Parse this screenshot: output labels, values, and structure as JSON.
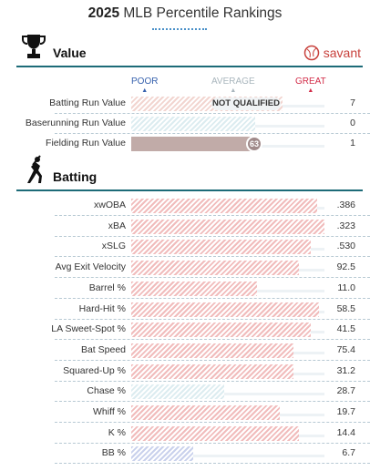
{
  "header": {
    "year": "2025",
    "title": "MLB Percentile Rankings"
  },
  "value_section": {
    "title": "Value",
    "brand": "savant"
  },
  "scale": {
    "poor": "POOR",
    "average": "AVERAGE",
    "great": "GREAT"
  },
  "value_rows": [
    {
      "label": "Batting Run Value",
      "value": "7",
      "status": "NOT QUALIFIED"
    },
    {
      "label": "Baserunning Run Value",
      "value": "0"
    },
    {
      "label": "Fielding Run Value",
      "value": "1",
      "percentile": 63
    }
  ],
  "batting_section": {
    "title": "Batting"
  },
  "batting_rows": [
    {
      "label": "xwOBA",
      "value": ".386",
      "fill": 0.96
    },
    {
      "label": "xBA",
      "value": ".323",
      "fill": 1.0
    },
    {
      "label": "xSLG",
      "value": ".530",
      "fill": 0.93
    },
    {
      "label": "Avg Exit Velocity",
      "value": "92.5",
      "fill": 0.87
    },
    {
      "label": "Barrel %",
      "value": "11.0",
      "fill": 0.65
    },
    {
      "label": "Hard-Hit %",
      "value": "58.5",
      "fill": 0.97
    },
    {
      "label": "LA Sweet-Spot %",
      "value": "41.5",
      "fill": 0.93
    },
    {
      "label": "Bat Speed",
      "value": "75.4",
      "fill": 0.84
    },
    {
      "label": "Squared-Up %",
      "value": "31.2",
      "fill": 0.84
    },
    {
      "label": "Chase %",
      "value": "28.7",
      "fill": 0.48
    },
    {
      "label": "Whiff %",
      "value": "19.7",
      "fill": 0.77
    },
    {
      "label": "K %",
      "value": "14.4",
      "fill": 0.87
    },
    {
      "label": "BB %",
      "value": "6.7",
      "fill": 0.32
    }
  ],
  "colors": {
    "accent": "#1d6b78",
    "great": "#d22d49",
    "poor": "#3661ad",
    "average": "#9aa8b0"
  }
}
